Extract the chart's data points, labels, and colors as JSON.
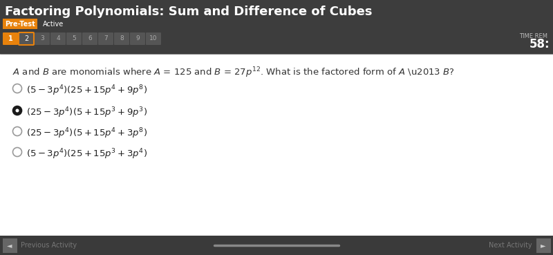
{
  "title": "Factoring Polynomials: Sum and Difference of Cubes",
  "subtitle_left": "Pre-Test",
  "subtitle_right": "Active",
  "header_bg": "#3d3d3d",
  "header_text_color": "#ffffff",
  "pretest_color": "#e8820c",
  "nav_buttons": [
    "1",
    "2",
    "3",
    "4",
    "5",
    "6",
    "7",
    "8",
    "9",
    "10"
  ],
  "time_label": "TIME REM",
  "time_value": "58:",
  "question_plain": "A and B are monomials where A = 125 and B = 27p",
  "question_sup": "12",
  "question_end": ". What is the factored form of A – B?",
  "options": [
    "(5 – 3p⁴)(25 + 15p⁴ + 9p⁸)",
    "(25 – 3p⁴)(5 + 15p³ + 9p³)",
    "(25 – 3p⁴)(5 + 15p⁴ + 3p⁸)",
    "(5 – 3p⁴)(25 + 15p³ + 3p⁴)"
  ],
  "selected_option": 1,
  "body_bg": "#ffffff",
  "footer_bg": "#3a3a3a",
  "nav_bg": "#555555",
  "nav_border_color": "#e8820c",
  "nav_active_1": "#e8820c"
}
